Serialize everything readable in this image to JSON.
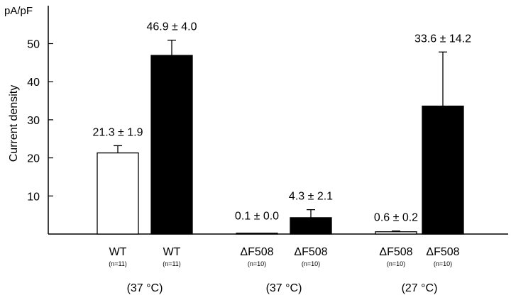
{
  "chart_data": {
    "type": "bar",
    "unit_label": "pA/pF",
    "ylabel": "Current density",
    "xlabel": "",
    "title": "",
    "ylim": [
      0,
      57
    ],
    "yticks": [
      10,
      20,
      30,
      40,
      50
    ],
    "bars": [
      {
        "label": "WT",
        "n": "(n=11)",
        "value": 21.3,
        "error": 1.9,
        "annotation": "21.3 ± 1.9",
        "fill": "#ffffff"
      },
      {
        "label": "WT",
        "n": "(n=11)",
        "value": 46.9,
        "error": 4.0,
        "annotation": "46.9 ± 4.0",
        "fill": "#000000"
      },
      {
        "label": "ΔF508",
        "n": "(n=10)",
        "value": 0.1,
        "error": 0.0,
        "annotation": "0.1 ± 0.0",
        "fill": "#ffffff"
      },
      {
        "label": "ΔF508",
        "n": "(n=10)",
        "value": 4.3,
        "error": 2.1,
        "annotation": "4.3 ± 2.1",
        "fill": "#000000"
      },
      {
        "label": "ΔF508",
        "n": "(n=10)",
        "value": 0.6,
        "error": 0.2,
        "annotation": "0.6 ± 0.2",
        "fill": "#ffffff"
      },
      {
        "label": "ΔF508",
        "n": "(n=10)",
        "value": 33.6,
        "error": 14.2,
        "annotation": "33.6 ± 14.2",
        "fill": "#000000"
      }
    ],
    "groups": [
      {
        "label": "(37 °C)",
        "bars": [
          0,
          1
        ]
      },
      {
        "label": "(37 °C)",
        "bars": [
          2,
          3
        ]
      },
      {
        "label": "(27 °C)",
        "bars": [
          4,
          5
        ]
      }
    ],
    "grid": false,
    "legend": "none"
  }
}
